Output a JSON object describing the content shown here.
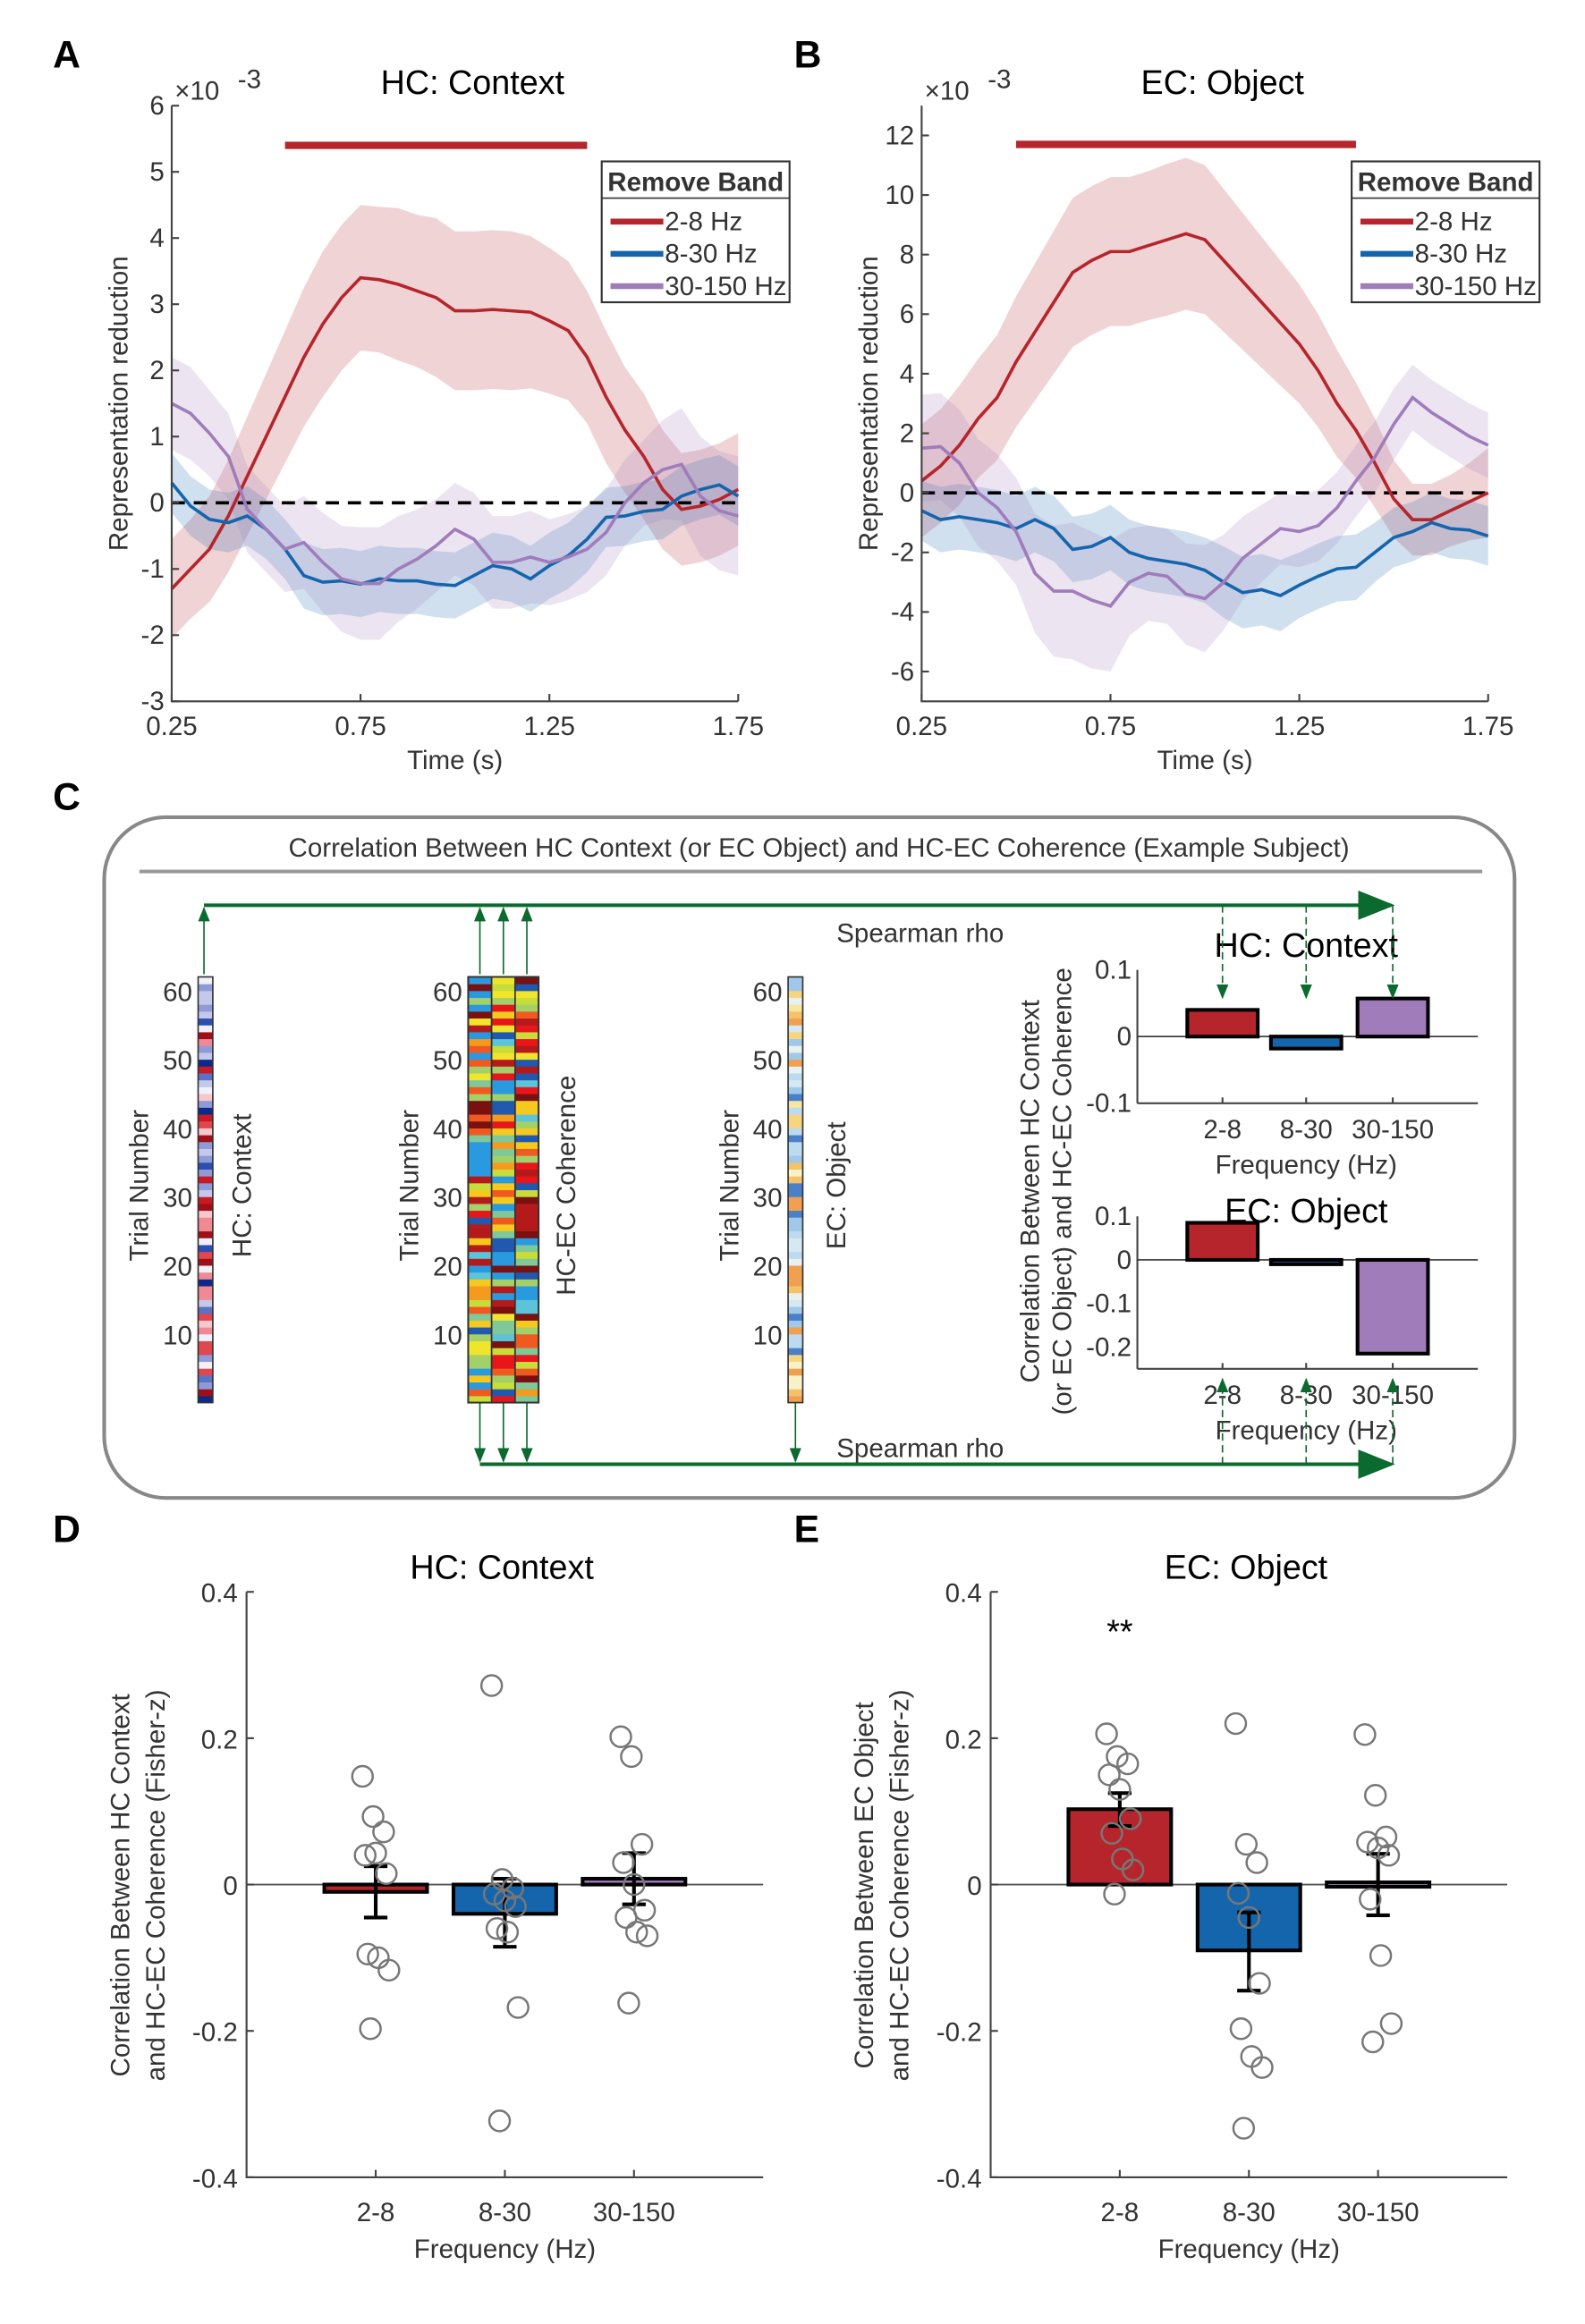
{
  "colors": {
    "band_2_8": "#b5252b",
    "band_8_30": "#1565ad",
    "band_30_150": "#a07cbb",
    "arrow": "#0b6a2e",
    "frame": "#888888"
  },
  "chart_data": [
    {
      "panel": "A",
      "type": "line",
      "title": "HC: Context",
      "xlabel": "Time (s)",
      "ylabel": "Representation reduction",
      "yscale_label": "×10",
      "yscale_exp": "-3",
      "xlim": [
        0.25,
        1.75
      ],
      "ylim": [
        -3,
        6
      ],
      "xticks": [
        0.25,
        0.75,
        1.25,
        1.75
      ],
      "xtick_labels": [
        "0.25",
        "0.75",
        "1.25",
        "1.75"
      ],
      "yticks": [
        -3,
        -2,
        -1,
        0,
        1,
        2,
        3,
        4,
        5,
        6
      ],
      "ytick_labels": [
        "-3",
        "-2",
        "-1",
        "0",
        "1",
        "2",
        "3",
        "4",
        "5",
        "6"
      ],
      "legend_title": "Remove Band",
      "legend_placement": "top-right",
      "significance_bar": {
        "x": [
          0.55,
          1.35
        ],
        "y": 5.4,
        "color": "#b5252b"
      },
      "zero_line": "dashed",
      "x_start": 0.25,
      "x_step": 0.05,
      "series": [
        {
          "name": "2-8 Hz",
          "color": "#b5252b",
          "mean": [
            -1.3,
            -1.0,
            -0.7,
            -0.2,
            0.4,
            1.0,
            1.6,
            2.2,
            2.7,
            3.1,
            3.4,
            3.37,
            3.3,
            3.2,
            3.1,
            2.9,
            2.9,
            2.92,
            2.9,
            2.88,
            2.75,
            2.6,
            2.2,
            1.6,
            1.1,
            0.7,
            0.2,
            -0.1,
            -0.05,
            0.05,
            0.2
          ],
          "sem": [
            0.75,
            0.75,
            0.8,
            0.85,
            0.9,
            0.95,
            1.0,
            1.05,
            1.1,
            1.1,
            1.1,
            1.1,
            1.15,
            1.15,
            1.2,
            1.2,
            1.2,
            1.2,
            1.2,
            1.15,
            1.1,
            1.05,
            1.0,
            1.0,
            0.95,
            0.95,
            0.9,
            0.85,
            0.85,
            0.85,
            0.85
          ]
        },
        {
          "name": "8-30 Hz",
          "color": "#1565ad",
          "mean": [
            0.3,
            -0.05,
            -0.25,
            -0.3,
            -0.2,
            -0.4,
            -0.7,
            -1.1,
            -1.2,
            -1.18,
            -1.23,
            -1.15,
            -1.18,
            -1.18,
            -1.23,
            -1.25,
            -1.1,
            -0.95,
            -1.0,
            -1.15,
            -0.95,
            -0.8,
            -0.55,
            -0.22,
            -0.2,
            -0.13,
            -0.1,
            0.1,
            0.2,
            0.27,
            0.1
          ],
          "sem": [
            0.45,
            0.45,
            0.45,
            0.45,
            0.45,
            0.45,
            0.45,
            0.5,
            0.5,
            0.5,
            0.5,
            0.5,
            0.5,
            0.5,
            0.5,
            0.5,
            0.5,
            0.5,
            0.5,
            0.5,
            0.5,
            0.5,
            0.5,
            0.45,
            0.45,
            0.45,
            0.45,
            0.45,
            0.45,
            0.45,
            0.45
          ]
        },
        {
          "name": "30-150 Hz",
          "color": "#a07cbb",
          "mean": [
            1.5,
            1.35,
            1.05,
            0.7,
            -0.1,
            -0.4,
            -0.7,
            -0.6,
            -0.9,
            -1.15,
            -1.22,
            -1.22,
            -1.0,
            -0.85,
            -0.65,
            -0.4,
            -0.55,
            -0.9,
            -0.9,
            -0.82,
            -0.9,
            -0.82,
            -0.7,
            -0.45,
            0.0,
            0.3,
            0.5,
            0.58,
            0.1,
            -0.12,
            -0.2
          ],
          "sem": [
            0.7,
            0.7,
            0.65,
            0.65,
            0.65,
            0.65,
            0.65,
            0.7,
            0.75,
            0.8,
            0.85,
            0.85,
            0.8,
            0.75,
            0.7,
            0.7,
            0.7,
            0.7,
            0.7,
            0.7,
            0.65,
            0.65,
            0.65,
            0.65,
            0.65,
            0.65,
            0.75,
            0.85,
            0.9,
            0.9,
            0.9
          ]
        }
      ]
    },
    {
      "panel": "B",
      "type": "line",
      "title": "EC: Object",
      "xlabel": "Time (s)",
      "ylabel": "Representation reduction",
      "yscale_label": "×10",
      "yscale_exp": "-3",
      "xlim": [
        0.25,
        1.75
      ],
      "ylim": [
        -7,
        13
      ],
      "xticks": [
        0.25,
        0.75,
        1.25,
        1.75
      ],
      "xtick_labels": [
        "0.25",
        "0.75",
        "1.25",
        "1.75"
      ],
      "yticks": [
        -6,
        -4,
        -2,
        0,
        2,
        4,
        6,
        8,
        10,
        12
      ],
      "ytick_labels": [
        "-6",
        "-4",
        "-2",
        "0",
        "2",
        "4",
        "6",
        "8",
        "10",
        "12"
      ],
      "legend_title": "Remove Band",
      "legend_placement": "top-right",
      "significance_bar": {
        "x": [
          0.5,
          1.4
        ],
        "y": 11.7,
        "color": "#b5252b"
      },
      "zero_line": "dashed",
      "x_start": 0.25,
      "x_step": 0.05,
      "series": [
        {
          "name": "2-8 Hz",
          "color": "#b5252b",
          "mean": [
            0.4,
            0.9,
            1.6,
            2.5,
            3.2,
            4.4,
            5.4,
            6.4,
            7.4,
            7.8,
            8.1,
            8.1,
            8.3,
            8.5,
            8.7,
            8.5,
            7.8,
            7.1,
            6.4,
            5.7,
            5.0,
            4.1,
            3.0,
            2.1,
            1.0,
            -0.2,
            -0.9,
            -0.9,
            -0.6,
            -0.3,
            0.0
          ],
          "sem": [
            1.9,
            1.9,
            2.0,
            2.0,
            2.1,
            2.2,
            2.3,
            2.4,
            2.5,
            2.5,
            2.5,
            2.5,
            2.5,
            2.55,
            2.55,
            2.5,
            2.4,
            2.3,
            2.2,
            2.1,
            2.0,
            1.9,
            1.8,
            1.6,
            1.5,
            1.3,
            1.2,
            1.2,
            1.2,
            1.3,
            1.5
          ]
        },
        {
          "name": "8-30 Hz",
          "color": "#1565ad",
          "mean": [
            -0.6,
            -0.9,
            -0.8,
            -0.9,
            -1.0,
            -1.2,
            -0.9,
            -1.2,
            -1.9,
            -1.8,
            -1.5,
            -2.0,
            -2.2,
            -2.3,
            -2.4,
            -2.6,
            -3.0,
            -3.35,
            -3.25,
            -3.45,
            -3.1,
            -2.8,
            -2.55,
            -2.5,
            -2.0,
            -1.5,
            -1.3,
            -1.0,
            -1.2,
            -1.25,
            -1.45
          ],
          "sem": [
            1.0,
            1.1,
            1.1,
            1.1,
            1.1,
            1.1,
            1.1,
            1.1,
            1.1,
            1.1,
            1.1,
            1.1,
            1.1,
            1.1,
            1.1,
            1.1,
            1.2,
            1.2,
            1.2,
            1.2,
            1.1,
            1.1,
            1.1,
            1.1,
            1.0,
            1.0,
            1.0,
            1.0,
            1.0,
            1.0,
            1.0
          ]
        },
        {
          "name": "30-150 Hz",
          "color": "#a07cbb",
          "mean": [
            1.5,
            1.55,
            1.0,
            0.0,
            -0.5,
            -1.3,
            -2.7,
            -3.3,
            -3.3,
            -3.6,
            -3.8,
            -3.0,
            -2.7,
            -2.8,
            -3.4,
            -3.55,
            -3.0,
            -2.2,
            -1.7,
            -1.2,
            -1.3,
            -1.1,
            -0.5,
            0.4,
            1.2,
            2.3,
            3.2,
            2.7,
            2.3,
            1.9,
            1.6
          ],
          "sem": [
            1.8,
            1.8,
            1.8,
            1.8,
            1.8,
            1.8,
            2.0,
            2.2,
            2.3,
            2.3,
            2.2,
            1.8,
            1.6,
            1.6,
            1.7,
            1.8,
            1.6,
            1.4,
            1.3,
            1.2,
            1.2,
            1.2,
            1.2,
            1.2,
            1.2,
            1.2,
            1.1,
            1.1,
            1.1,
            1.1,
            1.1
          ]
        }
      ]
    },
    {
      "panel": "C-top",
      "type": "bar",
      "title": "HC: Context",
      "xlabel": "Frequency (Hz)",
      "categories": [
        "2-8",
        "8-30",
        "30-150"
      ],
      "values": [
        0.04,
        -0.018,
        0.057
      ],
      "ylim": [
        -0.1,
        0.1
      ],
      "yticks": [
        -0.1,
        0,
        0.1
      ],
      "ytick_labels": [
        "-0.1",
        "0",
        "0.1"
      ]
    },
    {
      "panel": "C-bottom",
      "type": "bar",
      "title": "EC: Object",
      "xlabel": "Frequency (Hz)",
      "categories": [
        "2-8",
        "8-30",
        "30-150"
      ],
      "values": [
        0.085,
        -0.01,
        -0.215
      ],
      "ylim": [
        -0.25,
        0.1
      ],
      "yticks": [
        -0.2,
        -0.1,
        0,
        0.1
      ],
      "ytick_labels": [
        "-0.2",
        "-0.1",
        "0",
        "0.1"
      ]
    },
    {
      "panel": "D",
      "type": "bar",
      "title": "HC: Context",
      "xlabel": "Frequency (Hz)",
      "ylabel": [
        "Correlation Between HC Context",
        "and HC-EC Coherence (Fisher-z)"
      ],
      "categories": [
        "2-8",
        "8-30",
        "30-150"
      ],
      "values": [
        -0.01,
        -0.04,
        0.008
      ],
      "errors": [
        [
          -0.045,
          0.025
        ],
        [
          -0.085,
          0.008
        ],
        [
          -0.027,
          0.043
        ]
      ],
      "points": [
        [
          0.148,
          0.093,
          0.072,
          0.04,
          0.043,
          0.015,
          -0.095,
          -0.1,
          -0.117,
          -0.197
        ],
        [
          0.272,
          0.007,
          -0.005,
          -0.013,
          -0.022,
          -0.03,
          -0.06,
          -0.065,
          -0.168,
          -0.323
        ],
        [
          0.202,
          0.175,
          0.055,
          0.03,
          0.0,
          -0.035,
          -0.045,
          -0.065,
          -0.07,
          -0.162
        ]
      ],
      "ylim": [
        -0.4,
        0.4
      ],
      "yticks": [
        -0.4,
        -0.2,
        0,
        0.2,
        0.4
      ],
      "ytick_labels": [
        "-0.4",
        "-0.2",
        "0",
        "0.2",
        "0.4"
      ],
      "significance": ""
    },
    {
      "panel": "E",
      "type": "bar",
      "title": "EC: Object",
      "xlabel": "Frequency (Hz)",
      "ylabel": [
        "Correlation Between EC Object",
        "and HC-EC Coherence (Fisher-z)"
      ],
      "categories": [
        "2-8",
        "8-30",
        "30-150"
      ],
      "values": [
        0.103,
        -0.09,
        0.0
      ],
      "errors": [
        [
          0.08,
          0.125
        ],
        [
          -0.145,
          -0.038
        ],
        [
          -0.042,
          0.042
        ]
      ],
      "points": [
        [
          0.206,
          0.175,
          0.165,
          0.15,
          0.13,
          0.09,
          0.07,
          0.035,
          0.02,
          -0.013
        ],
        [
          0.22,
          0.055,
          0.03,
          -0.012,
          -0.045,
          -0.135,
          -0.197,
          -0.235,
          -0.25,
          -0.333
        ],
        [
          0.205,
          0.122,
          0.065,
          0.058,
          0.05,
          0.04,
          -0.02,
          -0.097,
          -0.19,
          -0.215
        ]
      ],
      "ylim": [
        -0.4,
        0.4
      ],
      "yticks": [
        -0.4,
        -0.2,
        0,
        0.2,
        0.4
      ],
      "ytick_labels": [
        "-0.4",
        "-0.2",
        "0",
        "0.2",
        "0.4"
      ],
      "significance": "**"
    }
  ],
  "panel_letters": [
    "A",
    "B",
    "C",
    "D",
    "E"
  ],
  "panel_c": {
    "title": "Correlation Between HC Context (or EC Object) and HC-EC Coherence (Example Subject)",
    "spearman_label": "Spearman rho",
    "trial_axis_label": "Trial Number",
    "trial_ticks": [
      "10",
      "20",
      "30",
      "40",
      "50",
      "60"
    ],
    "strip_labels": [
      "HC: Context",
      "HC-EC Coherence",
      "EC: Object"
    ],
    "bar_ylabel": [
      "Correlation Between HC Context",
      "(or EC Object) and HC-EC Coherence"
    ]
  }
}
